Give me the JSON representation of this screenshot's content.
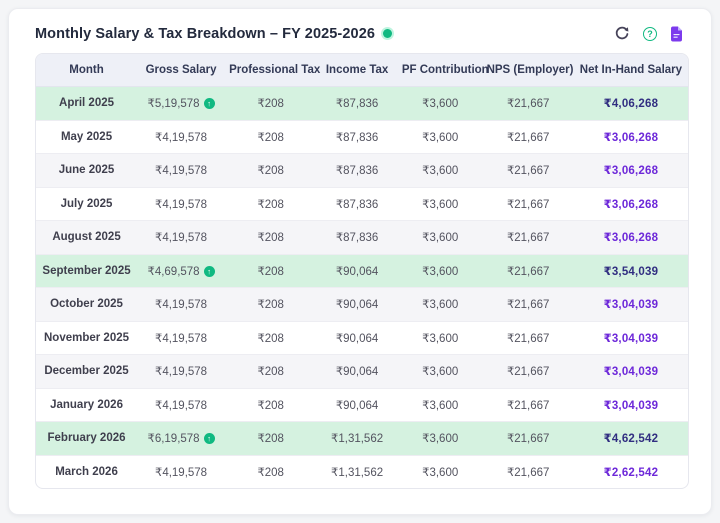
{
  "header": {
    "title": "Monthly Salary & Tax Breakdown – FY 2025-2026",
    "status_dot": {
      "icon": "green-status-dot"
    },
    "actions": [
      {
        "name": "refresh-icon",
        "meaning": "circular-arrow-reload"
      },
      {
        "name": "help-icon",
        "glyph": "?",
        "meaning": "question-mark-circle"
      },
      {
        "name": "export-file-icon",
        "meaning": "document-file"
      }
    ]
  },
  "table": {
    "columns": [
      "Month",
      "Gross Salary",
      "Professional Tax",
      "Income Tax",
      "PF Contribution",
      "NPS (Employer)",
      "Net In-Hand Salary"
    ],
    "badge_glyph": "↑",
    "badge_icon_name": "green-up-arrow-circle",
    "rows": [
      {
        "month": "April 2025",
        "gross_salary": "₹5,19,578",
        "gross_badge": true,
        "professional_tax": "₹208",
        "income_tax": "₹87,836",
        "pf_contribution": "₹3,600",
        "nps_employer": "₹21,667",
        "net_in_hand": "₹4,06,268",
        "highlight": true
      },
      {
        "month": "May 2025",
        "gross_salary": "₹4,19,578",
        "gross_badge": false,
        "professional_tax": "₹208",
        "income_tax": "₹87,836",
        "pf_contribution": "₹3,600",
        "nps_employer": "₹21,667",
        "net_in_hand": "₹3,06,268",
        "highlight": false
      },
      {
        "month": "June 2025",
        "gross_salary": "₹4,19,578",
        "gross_badge": false,
        "professional_tax": "₹208",
        "income_tax": "₹87,836",
        "pf_contribution": "₹3,600",
        "nps_employer": "₹21,667",
        "net_in_hand": "₹3,06,268",
        "highlight": false
      },
      {
        "month": "July 2025",
        "gross_salary": "₹4,19,578",
        "gross_badge": false,
        "professional_tax": "₹208",
        "income_tax": "₹87,836",
        "pf_contribution": "₹3,600",
        "nps_employer": "₹21,667",
        "net_in_hand": "₹3,06,268",
        "highlight": false
      },
      {
        "month": "August 2025",
        "gross_salary": "₹4,19,578",
        "gross_badge": false,
        "professional_tax": "₹208",
        "income_tax": "₹87,836",
        "pf_contribution": "₹3,600",
        "nps_employer": "₹21,667",
        "net_in_hand": "₹3,06,268",
        "highlight": false
      },
      {
        "month": "September 2025",
        "gross_salary": "₹4,69,578",
        "gross_badge": true,
        "professional_tax": "₹208",
        "income_tax": "₹90,064",
        "pf_contribution": "₹3,600",
        "nps_employer": "₹21,667",
        "net_in_hand": "₹3,54,039",
        "highlight": true
      },
      {
        "month": "October 2025",
        "gross_salary": "₹4,19,578",
        "gross_badge": false,
        "professional_tax": "₹208",
        "income_tax": "₹90,064",
        "pf_contribution": "₹3,600",
        "nps_employer": "₹21,667",
        "net_in_hand": "₹3,04,039",
        "highlight": false
      },
      {
        "month": "November 2025",
        "gross_salary": "₹4,19,578",
        "gross_badge": false,
        "professional_tax": "₹208",
        "income_tax": "₹90,064",
        "pf_contribution": "₹3,600",
        "nps_employer": "₹21,667",
        "net_in_hand": "₹3,04,039",
        "highlight": false
      },
      {
        "month": "December 2025",
        "gross_salary": "₹4,19,578",
        "gross_badge": false,
        "professional_tax": "₹208",
        "income_tax": "₹90,064",
        "pf_contribution": "₹3,600",
        "nps_employer": "₹21,667",
        "net_in_hand": "₹3,04,039",
        "highlight": false
      },
      {
        "month": "January 2026",
        "gross_salary": "₹4,19,578",
        "gross_badge": false,
        "professional_tax": "₹208",
        "income_tax": "₹90,064",
        "pf_contribution": "₹3,600",
        "nps_employer": "₹21,667",
        "net_in_hand": "₹3,04,039",
        "highlight": false
      },
      {
        "month": "February 2026",
        "gross_salary": "₹6,19,578",
        "gross_badge": true,
        "professional_tax": "₹208",
        "income_tax": "₹1,31,562",
        "pf_contribution": "₹3,600",
        "nps_employer": "₹21,667",
        "net_in_hand": "₹4,62,542",
        "highlight": true
      },
      {
        "month": "March 2026",
        "gross_salary": "₹4,19,578",
        "gross_badge": false,
        "professional_tax": "₹208",
        "income_tax": "₹1,31,562",
        "pf_contribution": "₹3,600",
        "nps_employer": "₹21,667",
        "net_in_hand": "₹2,62,542",
        "highlight": false
      }
    ]
  },
  "colors": {
    "page_bg": "#f4f5f7",
    "card_border": "#ebecf0",
    "title_color": "#232a3d",
    "status_green": "#10b981",
    "header_row": "#eef0f7",
    "header_text": "#333a56",
    "stripe_row": "#f5f5f8",
    "highlight_row": "#d5f2e0",
    "month_text": "#3f3f4d",
    "value_text": "#53535f",
    "net_normal": "#6d28d9",
    "net_highlight": "#312e81",
    "icon_dark": "#47445a",
    "icon_purple": "#7c3aed"
  }
}
